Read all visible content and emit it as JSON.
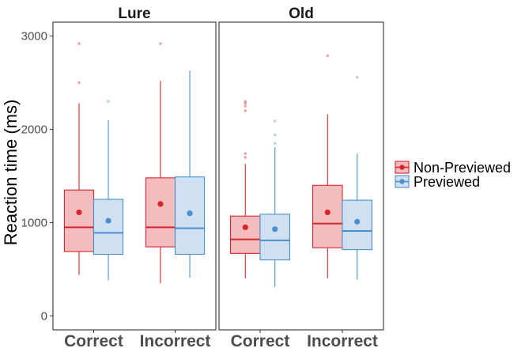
{
  "chart_data": {
    "type": "boxplot",
    "ylabel": "Reaction time (ms)",
    "ylim": [
      -150,
      3150
    ],
    "yticks": [
      0,
      1000,
      2000,
      3000
    ],
    "categories": [
      "Correct",
      "Incorrect"
    ],
    "grid": false,
    "legend_position": "right",
    "series": [
      {
        "name": "Non-Previewed",
        "color": "#d7262b",
        "fill": "#f4bcbe"
      },
      {
        "name": "Previewed",
        "color": "#4a90cf",
        "fill": "#cfe0f2"
      }
    ],
    "panels": [
      {
        "title": "Lure",
        "groups": [
          {
            "category": "Correct",
            "series": "Non-Previewed",
            "whisker_low": 440,
            "q1": 690,
            "median": 950,
            "q3": 1350,
            "whisker_high": 2280,
            "mean": 1110,
            "outliers": [
              2500,
              2920
            ]
          },
          {
            "category": "Correct",
            "series": "Previewed",
            "whisker_low": 380,
            "q1": 660,
            "median": 890,
            "q3": 1250,
            "whisker_high": 2100,
            "mean": 1020,
            "outliers": [
              2300
            ]
          },
          {
            "category": "Incorrect",
            "series": "Non-Previewed",
            "whisker_low": 350,
            "q1": 740,
            "median": 950,
            "q3": 1480,
            "whisker_high": 2520,
            "mean": 1200,
            "outliers": [
              2920
            ]
          },
          {
            "category": "Incorrect",
            "series": "Previewed",
            "whisker_low": 410,
            "q1": 660,
            "median": 940,
            "q3": 1490,
            "whisker_high": 2630,
            "mean": 1100,
            "outliers": []
          }
        ]
      },
      {
        "title": "Old",
        "groups": [
          {
            "category": "Correct",
            "series": "Non-Previewed",
            "whisker_low": 400,
            "q1": 670,
            "median": 820,
            "q3": 1070,
            "whisker_high": 1630,
            "mean": 950,
            "outliers": [
              1700,
              1740,
              2200,
              2250,
              2280,
              2300
            ]
          },
          {
            "category": "Correct",
            "series": "Previewed",
            "whisker_low": 310,
            "q1": 600,
            "median": 810,
            "q3": 1090,
            "whisker_high": 1810,
            "mean": 930,
            "outliers": [
              1850,
              1940,
              2090
            ]
          },
          {
            "category": "Incorrect",
            "series": "Non-Previewed",
            "whisker_low": 400,
            "q1": 730,
            "median": 990,
            "q3": 1400,
            "whisker_high": 2160,
            "mean": 1110,
            "outliers": [
              2790
            ]
          },
          {
            "category": "Incorrect",
            "series": "Previewed",
            "whisker_low": 390,
            "q1": 710,
            "median": 910,
            "q3": 1240,
            "whisker_high": 1740,
            "mean": 1010,
            "outliers": [
              2560
            ]
          }
        ]
      }
    ]
  }
}
